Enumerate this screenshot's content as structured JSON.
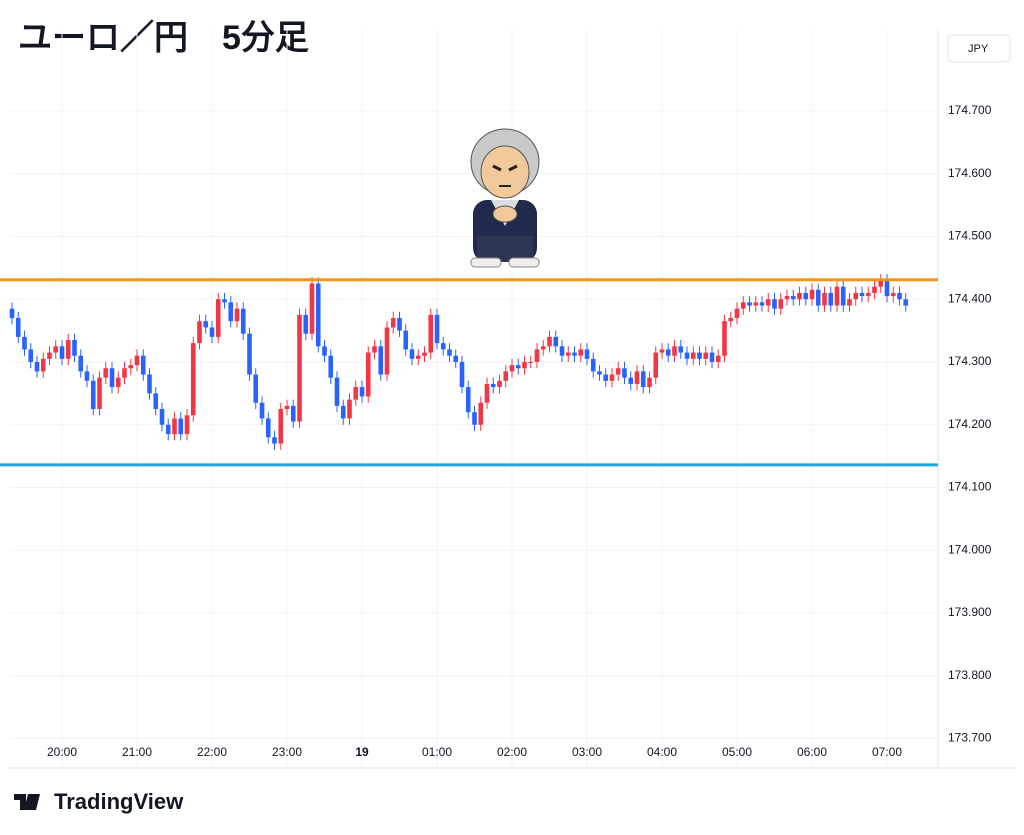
{
  "chart_data": {
    "type": "candlestick",
    "title": "ユーロ／円　5分足",
    "currency": "JPY",
    "brand": "TradingView",
    "categories": [
      null,
      null,
      null,
      null,
      null,
      null,
      null,
      null,
      "20:00",
      null,
      null,
      null,
      null,
      null,
      null,
      null,
      null,
      null,
      null,
      null,
      "21:00",
      null,
      null,
      null,
      null,
      null,
      null,
      null,
      null,
      null,
      null,
      null,
      "22:00",
      null,
      null,
      null,
      null,
      null,
      null,
      null,
      null,
      null,
      null,
      null,
      "23:00",
      null,
      null,
      null,
      null,
      null,
      null,
      null,
      null,
      null,
      null,
      null,
      "19",
      null,
      null,
      null,
      null,
      null,
      null,
      null,
      null,
      null,
      null,
      null,
      "01:00",
      null,
      null,
      null,
      null,
      null,
      null,
      null,
      null,
      null,
      null,
      null,
      "02:00",
      null,
      null,
      null,
      null,
      null,
      null,
      null,
      null,
      null,
      null,
      null,
      "03:00",
      null,
      null,
      null,
      null,
      null,
      null,
      null,
      null,
      null,
      null,
      null,
      "04:00",
      null,
      null,
      null,
      null,
      null,
      null,
      null,
      null,
      null,
      null,
      null,
      "05:00",
      null,
      null,
      null,
      null,
      null,
      null,
      null,
      null,
      null,
      null,
      null,
      "06:00",
      null,
      null,
      null,
      null,
      null,
      null,
      null,
      null,
      null,
      null,
      null,
      "07:00",
      null,
      null,
      null
    ],
    "open": [
      174.385,
      174.37,
      174.34,
      174.32,
      174.3,
      174.285,
      174.305,
      174.315,
      174.325,
      174.305,
      174.335,
      174.31,
      174.285,
      174.27,
      174.225,
      174.275,
      174.29,
      174.26,
      174.275,
      174.29,
      174.295,
      174.31,
      174.28,
      174.25,
      174.225,
      174.2,
      174.185,
      174.21,
      174.185,
      174.215,
      174.33,
      174.365,
      174.355,
      174.34,
      174.4,
      174.395,
      174.365,
      174.385,
      174.345,
      174.28,
      174.235,
      174.21,
      174.18,
      174.17,
      174.225,
      174.23,
      174.205,
      174.375,
      174.345,
      174.425,
      174.325,
      174.31,
      174.275,
      174.23,
      174.21,
      174.24,
      174.26,
      174.245,
      174.315,
      174.325,
      174.28,
      174.355,
      174.37,
      174.35,
      174.32,
      174.305,
      174.31,
      174.315,
      174.375,
      174.33,
      174.32,
      174.31,
      174.3,
      174.26,
      174.22,
      174.2,
      174.235,
      174.265,
      174.26,
      174.27,
      174.285,
      174.295,
      174.29,
      174.3,
      174.3,
      174.32,
      174.325,
      174.34,
      174.325,
      174.31,
      174.315,
      174.31,
      174.32,
      174.305,
      174.285,
      174.28,
      174.27,
      174.28,
      174.29,
      174.275,
      174.265,
      174.285,
      174.26,
      174.275,
      174.315,
      174.32,
      174.31,
      174.325,
      174.315,
      174.305,
      174.315,
      174.305,
      174.315,
      174.3,
      174.31,
      174.365,
      174.37,
      174.385,
      174.395,
      174.39,
      174.395,
      174.39,
      174.4,
      174.385,
      174.4,
      174.405,
      174.4,
      174.41,
      174.4,
      174.415,
      174.39,
      174.41,
      174.39,
      174.42,
      174.39,
      174.4,
      174.41,
      174.405,
      174.41,
      174.42,
      174.43,
      174.405,
      174.41,
      174.4
    ],
    "high": [
      174.395,
      174.38,
      174.35,
      174.33,
      174.31,
      174.315,
      174.325,
      174.335,
      174.335,
      174.345,
      174.345,
      174.32,
      174.295,
      174.28,
      174.285,
      174.3,
      174.3,
      174.285,
      174.3,
      174.305,
      174.32,
      174.32,
      174.29,
      174.26,
      174.235,
      174.21,
      174.22,
      174.22,
      174.225,
      174.34,
      174.375,
      174.375,
      174.365,
      174.41,
      174.41,
      174.405,
      174.395,
      174.395,
      174.355,
      174.29,
      174.245,
      174.22,
      174.19,
      174.235,
      174.24,
      174.24,
      174.385,
      174.385,
      174.435,
      174.435,
      174.335,
      174.32,
      174.285,
      174.24,
      174.25,
      174.27,
      174.27,
      174.325,
      174.335,
      174.335,
      174.365,
      174.38,
      174.38,
      174.36,
      174.33,
      174.32,
      174.325,
      174.385,
      174.385,
      174.34,
      174.33,
      174.32,
      174.31,
      174.27,
      174.23,
      174.245,
      174.275,
      174.275,
      174.28,
      174.295,
      174.305,
      174.305,
      174.31,
      174.31,
      174.33,
      174.335,
      174.35,
      174.35,
      174.335,
      174.325,
      174.325,
      174.33,
      174.33,
      174.315,
      174.295,
      174.29,
      174.29,
      174.3,
      174.3,
      174.285,
      174.295,
      174.295,
      174.285,
      174.325,
      174.33,
      174.33,
      174.335,
      174.335,
      174.325,
      174.325,
      174.325,
      174.325,
      174.325,
      174.32,
      174.375,
      174.38,
      174.395,
      174.405,
      174.405,
      174.405,
      174.405,
      174.41,
      174.41,
      174.41,
      174.415,
      174.415,
      174.42,
      174.42,
      174.425,
      174.425,
      174.42,
      174.42,
      174.43,
      174.43,
      174.41,
      174.42,
      174.42,
      174.42,
      174.43,
      174.44,
      174.44,
      174.42,
      174.42,
      174.41
    ],
    "low": [
      174.36,
      174.33,
      174.31,
      174.29,
      174.275,
      174.275,
      174.295,
      174.305,
      174.295,
      174.295,
      174.3,
      174.275,
      174.26,
      174.215,
      174.215,
      174.265,
      174.25,
      174.25,
      174.265,
      174.28,
      174.285,
      174.27,
      174.24,
      174.215,
      174.19,
      174.175,
      174.175,
      174.175,
      174.175,
      174.205,
      174.32,
      174.345,
      174.33,
      174.33,
      174.385,
      174.355,
      174.355,
      174.335,
      174.27,
      174.225,
      174.2,
      174.17,
      174.16,
      174.16,
      174.215,
      174.195,
      174.195,
      174.335,
      174.335,
      174.315,
      174.3,
      174.265,
      174.22,
      174.2,
      174.2,
      174.23,
      174.235,
      174.235,
      174.305,
      174.27,
      174.27,
      174.345,
      174.34,
      174.31,
      174.295,
      174.295,
      174.3,
      174.305,
      174.32,
      174.31,
      174.3,
      174.29,
      174.25,
      174.21,
      174.19,
      174.19,
      174.225,
      174.25,
      174.25,
      174.26,
      174.275,
      174.28,
      174.28,
      174.29,
      174.29,
      174.31,
      174.315,
      174.315,
      174.3,
      174.3,
      174.3,
      174.3,
      174.295,
      174.275,
      174.27,
      174.26,
      174.26,
      174.27,
      174.265,
      174.255,
      174.255,
      174.25,
      174.25,
      174.265,
      174.305,
      174.3,
      174.3,
      174.305,
      174.295,
      174.295,
      174.295,
      174.295,
      174.29,
      174.29,
      174.3,
      174.355,
      174.36,
      174.375,
      174.38,
      174.38,
      174.38,
      174.38,
      174.375,
      174.375,
      174.39,
      174.39,
      174.39,
      174.39,
      174.39,
      174.38,
      174.38,
      174.38,
      174.38,
      174.38,
      174.38,
      174.39,
      174.395,
      174.395,
      174.4,
      174.41,
      174.395,
      174.395,
      174.39,
      174.38
    ],
    "close": [
      174.37,
      174.34,
      174.32,
      174.3,
      174.285,
      174.305,
      174.315,
      174.325,
      174.305,
      174.335,
      174.31,
      174.285,
      174.27,
      174.225,
      174.275,
      174.29,
      174.26,
      174.275,
      174.29,
      174.295,
      174.31,
      174.28,
      174.25,
      174.225,
      174.2,
      174.185,
      174.21,
      174.185,
      174.215,
      174.33,
      174.365,
      174.355,
      174.34,
      174.4,
      174.395,
      174.365,
      174.385,
      174.345,
      174.28,
      174.235,
      174.21,
      174.18,
      174.17,
      174.225,
      174.23,
      174.205,
      174.375,
      174.345,
      174.425,
      174.325,
      174.31,
      174.275,
      174.23,
      174.21,
      174.24,
      174.26,
      174.245,
      174.315,
      174.325,
      174.28,
      174.355,
      174.37,
      174.35,
      174.32,
      174.305,
      174.31,
      174.315,
      174.375,
      174.33,
      174.32,
      174.31,
      174.3,
      174.26,
      174.22,
      174.2,
      174.235,
      174.265,
      174.26,
      174.27,
      174.285,
      174.295,
      174.29,
      174.3,
      174.3,
      174.32,
      174.325,
      174.34,
      174.325,
      174.31,
      174.315,
      174.31,
      174.32,
      174.305,
      174.285,
      174.28,
      174.27,
      174.28,
      174.29,
      174.275,
      174.265,
      174.285,
      174.26,
      174.275,
      174.315,
      174.32,
      174.31,
      174.325,
      174.315,
      174.305,
      174.315,
      174.305,
      174.315,
      174.3,
      174.31,
      174.365,
      174.37,
      174.385,
      174.395,
      174.39,
      174.395,
      174.39,
      174.4,
      174.385,
      174.4,
      174.405,
      174.4,
      174.41,
      174.4,
      174.415,
      174.39,
      174.41,
      174.39,
      174.42,
      174.39,
      174.4,
      174.41,
      174.405,
      174.41,
      174.42,
      174.43,
      174.405,
      174.41,
      174.4,
      174.39
    ],
    "up_color": "#f23645",
    "down_color": "#2962ff",
    "ylim": [
      173.653,
      174.829
    ],
    "yticks": [
      {
        "value": 173.7,
        "label": "173.700"
      },
      {
        "value": 173.8,
        "label": "173.800"
      },
      {
        "value": 173.9,
        "label": "173.900"
      },
      {
        "value": 174.0,
        "label": "174.000"
      },
      {
        "value": 174.1,
        "label": "174.100"
      },
      {
        "value": 174.2,
        "label": "174.200"
      },
      {
        "value": 174.3,
        "label": "174.300"
      },
      {
        "value": 174.4,
        "label": "174.400"
      },
      {
        "value": 174.5,
        "label": "174.500"
      },
      {
        "value": 174.6,
        "label": "174.600"
      },
      {
        "value": 174.7,
        "label": "174.700"
      }
    ],
    "grid": true,
    "hlines": [
      {
        "value": 174.431,
        "color": "#f7931a"
      },
      {
        "value": 174.136,
        "color": "#1ea7e1"
      }
    ]
  }
}
